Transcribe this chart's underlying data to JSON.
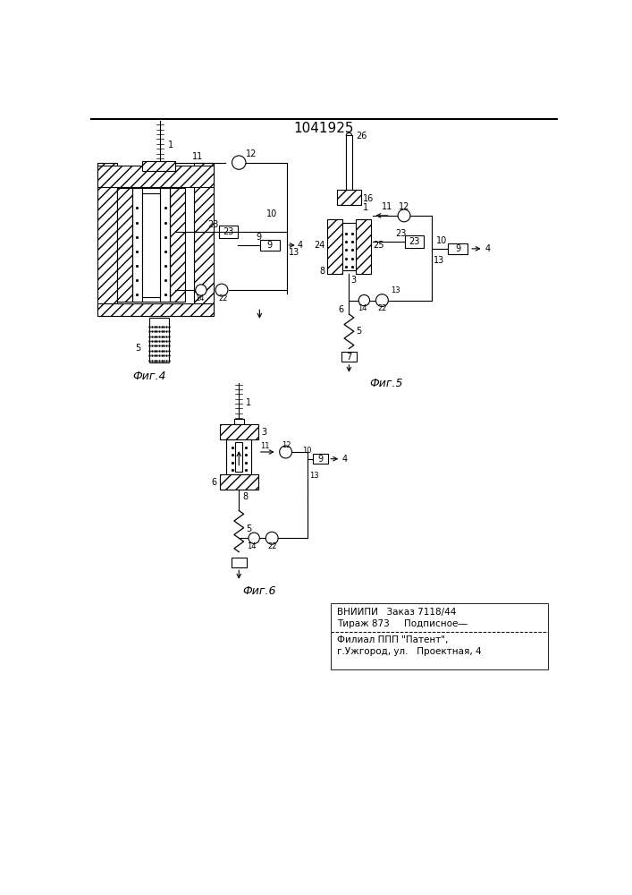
{
  "title": "1041925",
  "title_fontsize": 11,
  "bg_color": "#ffffff",
  "line_color": "#000000",
  "fig4_label": "Фиг.4",
  "fig5_label": "Фиг.5",
  "fig6_label": "Фиг.6",
  "footer_line1": "ВНИИПИ   Заказ 7118/44",
  "footer_line2": "Тираж 873     Подписное―",
  "footer_line3": "Филиал ППП \"Патент\",",
  "footer_line4": "г.Ужгород, ул.   Проектная, 4"
}
